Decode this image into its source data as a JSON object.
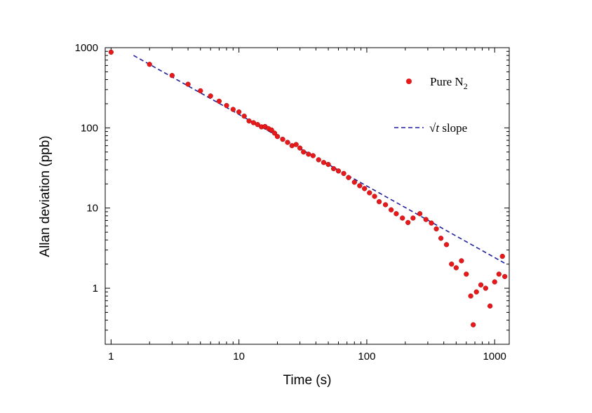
{
  "chart_data": {
    "type": "scatter",
    "xlabel": "Time (s)",
    "ylabel": "Allan deviation (ppb)",
    "x_scale": "log",
    "y_scale": "log",
    "xlim": [
      0.9,
      1300
    ],
    "ylim": [
      0.2,
      1000
    ],
    "x_ticks": [
      {
        "value": 1,
        "label": "1"
      },
      {
        "value": 10,
        "label": "10"
      },
      {
        "value": 100,
        "label": "100"
      },
      {
        "value": 1000,
        "label": "1000"
      }
    ],
    "y_ticks": [
      {
        "value": 1,
        "label": "1"
      },
      {
        "value": 10,
        "label": "10"
      },
      {
        "value": 100,
        "label": "100"
      },
      {
        "value": 1000,
        "label": "1000"
      }
    ],
    "grid": false,
    "legend_position": "top-right",
    "series": [
      {
        "name": "Pure N₂",
        "kind": "scatter",
        "color": "#e8191b",
        "points": [
          {
            "x": 1,
            "y": 880
          },
          {
            "x": 2,
            "y": 620
          },
          {
            "x": 3,
            "y": 450
          },
          {
            "x": 4,
            "y": 350
          },
          {
            "x": 5,
            "y": 290
          },
          {
            "x": 6,
            "y": 250
          },
          {
            "x": 7,
            "y": 215
          },
          {
            "x": 8,
            "y": 190
          },
          {
            "x": 9,
            "y": 170
          },
          {
            "x": 10,
            "y": 158
          },
          {
            "x": 11,
            "y": 140
          },
          {
            "x": 12,
            "y": 122
          },
          {
            "x": 13,
            "y": 116
          },
          {
            "x": 14,
            "y": 110
          },
          {
            "x": 15,
            "y": 103
          },
          {
            "x": 16,
            "y": 104
          },
          {
            "x": 17,
            "y": 98
          },
          {
            "x": 18,
            "y": 94
          },
          {
            "x": 19,
            "y": 86
          },
          {
            "x": 20,
            "y": 78
          },
          {
            "x": 22,
            "y": 72
          },
          {
            "x": 24,
            "y": 66
          },
          {
            "x": 26,
            "y": 60
          },
          {
            "x": 28,
            "y": 62
          },
          {
            "x": 30,
            "y": 56
          },
          {
            "x": 32,
            "y": 50
          },
          {
            "x": 35,
            "y": 47
          },
          {
            "x": 38,
            "y": 45
          },
          {
            "x": 42,
            "y": 40
          },
          {
            "x": 46,
            "y": 37
          },
          {
            "x": 50,
            "y": 35
          },
          {
            "x": 55,
            "y": 31
          },
          {
            "x": 60,
            "y": 29
          },
          {
            "x": 66,
            "y": 27
          },
          {
            "x": 72,
            "y": 24
          },
          {
            "x": 80,
            "y": 21
          },
          {
            "x": 88,
            "y": 19
          },
          {
            "x": 96,
            "y": 17.5
          },
          {
            "x": 105,
            "y": 15.5
          },
          {
            "x": 115,
            "y": 14
          },
          {
            "x": 125,
            "y": 12
          },
          {
            "x": 140,
            "y": 11
          },
          {
            "x": 155,
            "y": 9.5
          },
          {
            "x": 170,
            "y": 8.5
          },
          {
            "x": 190,
            "y": 7.5
          },
          {
            "x": 210,
            "y": 6.6
          },
          {
            "x": 230,
            "y": 7.5
          },
          {
            "x": 260,
            "y": 8.5
          },
          {
            "x": 290,
            "y": 7.2
          },
          {
            "x": 320,
            "y": 6.5
          },
          {
            "x": 350,
            "y": 5.5
          },
          {
            "x": 380,
            "y": 4.2
          },
          {
            "x": 420,
            "y": 3.5
          },
          {
            "x": 460,
            "y": 2.0
          },
          {
            "x": 500,
            "y": 1.8
          },
          {
            "x": 550,
            "y": 2.2
          },
          {
            "x": 600,
            "y": 1.5
          },
          {
            "x": 650,
            "y": 0.8
          },
          {
            "x": 680,
            "y": 0.35
          },
          {
            "x": 720,
            "y": 0.9
          },
          {
            "x": 780,
            "y": 1.1
          },
          {
            "x": 850,
            "y": 1.0
          },
          {
            "x": 920,
            "y": 0.6
          },
          {
            "x": 1000,
            "y": 1.2
          },
          {
            "x": 1080,
            "y": 1.5
          },
          {
            "x": 1150,
            "y": 2.5
          },
          {
            "x": 1200,
            "y": 1.4
          }
        ]
      },
      {
        "name": "√t slope",
        "kind": "line",
        "dash": "dashed",
        "color": "#1f1f9e",
        "points": [
          {
            "x": 1.5,
            "y": 800
          },
          {
            "x": 1200,
            "y": 2.05
          }
        ]
      }
    ]
  },
  "legend": {
    "n2_label_main": "Pure N",
    "n2_label_sub": "2",
    "slope_label_sqrt": "√",
    "slope_label_t": "t",
    "slope_label_rest": " slope"
  }
}
